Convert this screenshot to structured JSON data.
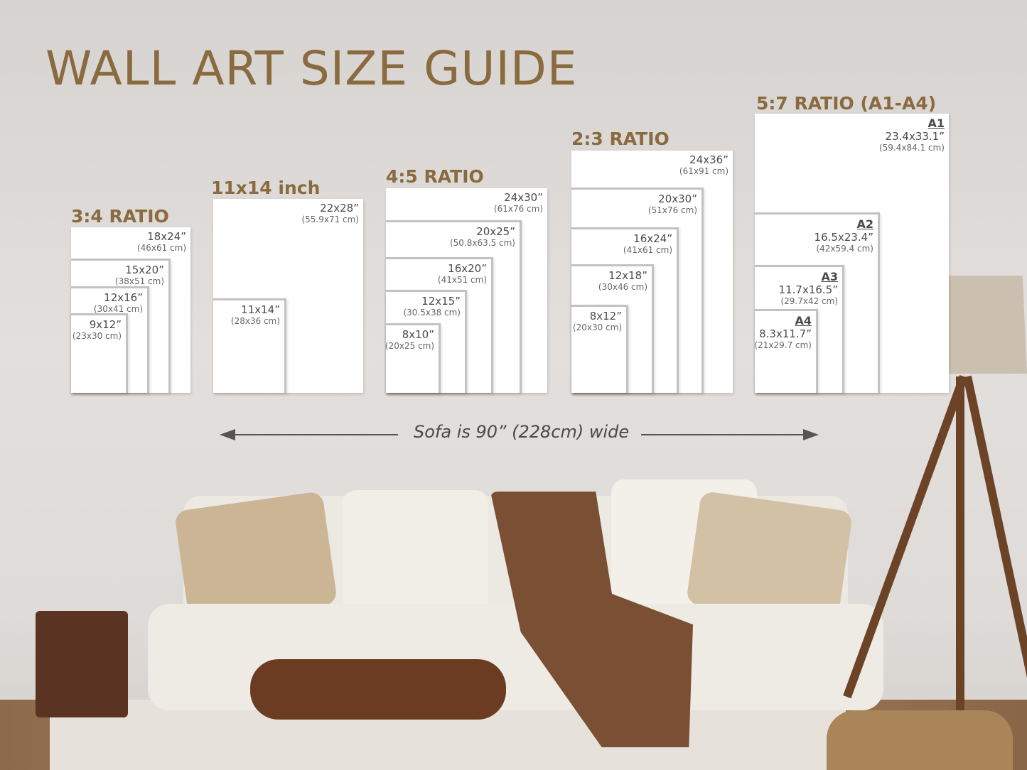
{
  "title": "WALL ART SIZE GUIDE",
  "sofa_note": "Sofa is 90” (228cm) wide",
  "colors": {
    "heading": "#8a6a3f",
    "frame": "#ffffff",
    "frame_border": "#c4c2c0",
    "wall": "#dedbd8"
  },
  "groups": [
    {
      "heading": "3:4 RATIO",
      "sizes": [
        {
          "inches": "18x24”",
          "cm": "(46x61 cm)"
        },
        {
          "inches": "15x20”",
          "cm": "(38x51 cm)"
        },
        {
          "inches": "12x16”",
          "cm": "(30x41 cm)"
        },
        {
          "inches": "9x12”",
          "cm": "(23x30 cm)"
        }
      ]
    },
    {
      "heading": "11x14 inch",
      "sizes": [
        {
          "inches": "22x28”",
          "cm": "(55.9x71 cm)"
        },
        {
          "inches": "11x14”",
          "cm": "(28x36 cm)"
        }
      ]
    },
    {
      "heading": "4:5 RATIO",
      "sizes": [
        {
          "inches": "24x30”",
          "cm": "(61x76 cm)"
        },
        {
          "inches": "20x25”",
          "cm": "(50.8x63.5 cm)"
        },
        {
          "inches": "16x20”",
          "cm": "(41x51 cm)"
        },
        {
          "inches": "12x15”",
          "cm": "(30.5x38 cm)"
        },
        {
          "inches": "8x10”",
          "cm": "(20x25 cm)"
        }
      ]
    },
    {
      "heading": "2:3 RATIO",
      "sizes": [
        {
          "inches": "24x36”",
          "cm": "(61x91 cm)"
        },
        {
          "inches": "20x30”",
          "cm": "(51x76 cm)"
        },
        {
          "inches": "16x24”",
          "cm": "(41x61 cm)"
        },
        {
          "inches": "12x18”",
          "cm": "(30x46 cm)"
        },
        {
          "inches": "8x12”",
          "cm": "(20x30 cm)"
        }
      ]
    },
    {
      "heading": "5:7 RATIO (A1-A4)",
      "sizes": [
        {
          "paper": "A1",
          "inches": "23.4x33.1”",
          "cm": "(59.4x84.1 cm)"
        },
        {
          "paper": "A2",
          "inches": "16.5x23.4”",
          "cm": "(42x59.4 cm)"
        },
        {
          "paper": "A3",
          "inches": "11.7x16.5”",
          "cm": "(29.7x42 cm)"
        },
        {
          "paper": "A4",
          "inches": "8.3x11.7”",
          "cm": "(21x29.7 cm)"
        }
      ]
    }
  ]
}
